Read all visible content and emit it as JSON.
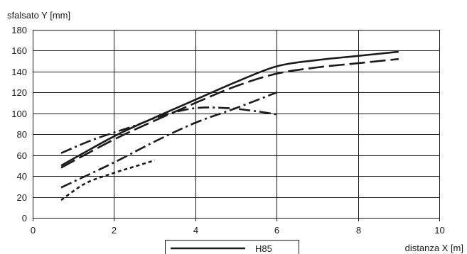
{
  "chart_data": {
    "type": "line",
    "title": "",
    "xlabel": "distanza X [m]",
    "ylabel": "sfalsato Y [mm]",
    "xlim": [
      0,
      10
    ],
    "ylim": [
      0,
      180
    ],
    "x_ticks": [
      0,
      2,
      4,
      6,
      8,
      10
    ],
    "y_ticks": [
      0,
      20,
      40,
      60,
      80,
      100,
      120,
      140,
      160,
      180
    ],
    "grid": true,
    "line_color": "#1a1a1a",
    "series": [
      {
        "name": "H85",
        "style": "solid",
        "x": [
          0.7,
          2,
          3,
          4,
          5,
          6,
          7,
          8,
          9
        ],
        "y": [
          50,
          78,
          96,
          113,
          130,
          145,
          151,
          155,
          159
        ]
      },
      {
        "style": "long-dash",
        "x": [
          0.7,
          2,
          3,
          4,
          5,
          6,
          7,
          8,
          9
        ],
        "y": [
          48,
          75,
          93,
          110,
          126,
          138,
          144,
          148,
          152
        ]
      },
      {
        "style": "dash-dot",
        "x": [
          0.7,
          1.5,
          2.5,
          3.2,
          4,
          4.8,
          5.5,
          6
        ],
        "y": [
          62,
          75,
          88,
          98,
          105,
          105,
          102,
          99
        ]
      },
      {
        "style": "dash-dot",
        "x": [
          0.7,
          2,
          3,
          4,
          5,
          6
        ],
        "y": [
          29,
          53,
          73,
          91,
          105,
          120
        ]
      },
      {
        "style": "short-dash",
        "x": [
          0.7,
          1.3,
          2,
          2.5,
          3
        ],
        "y": [
          17,
          33,
          43,
          49,
          55
        ]
      }
    ],
    "legend": {
      "placement": "bottom-center",
      "entries": [
        "H85"
      ]
    }
  }
}
